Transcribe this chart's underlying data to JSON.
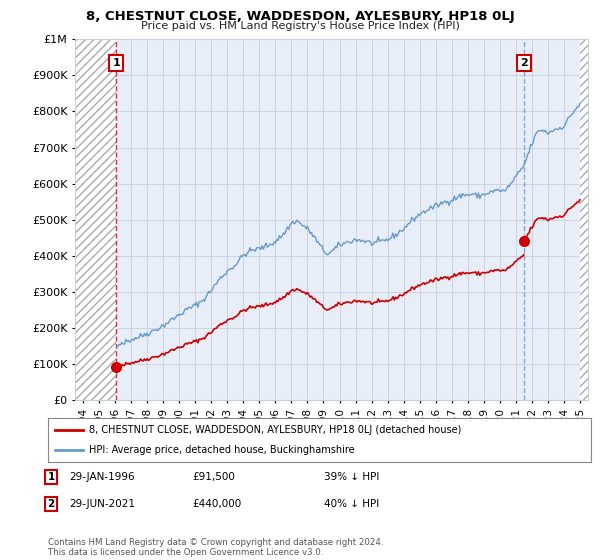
{
  "title": "8, CHESTNUT CLOSE, WADDESDON, AYLESBURY, HP18 0LJ",
  "subtitle": "Price paid vs. HM Land Registry's House Price Index (HPI)",
  "legend_line1": "8, CHESTNUT CLOSE, WADDESDON, AYLESBURY, HP18 0LJ (detached house)",
  "legend_line2": "HPI: Average price, detached house, Buckinghamshire",
  "annotation1_date": "29-JAN-1996",
  "annotation1_price": "£91,500",
  "annotation1_hpi": "39% ↓ HPI",
  "annotation2_date": "29-JUN-2021",
  "annotation2_price": "£440,000",
  "annotation2_hpi": "40% ↓ HPI",
  "footnote": "Contains HM Land Registry data © Crown copyright and database right 2024.\nThis data is licensed under the Open Government Licence v3.0.",
  "sale1_year": 1996.08,
  "sale1_value": 91500,
  "sale2_year": 2021.5,
  "sale2_value": 440000,
  "hpi_color": "#6699cc",
  "price_color": "#cc0000",
  "background_color": "#ffffff",
  "plot_bg_color": "#e8eef8",
  "hatch_color": "#aaaaaa",
  "grid_color": "#c8d0dc",
  "ylim": [
    0,
    1000000
  ],
  "xlim_left": 1993.5,
  "xlim_right": 2025.5,
  "xtick_years": [
    1994,
    1995,
    1996,
    1997,
    1998,
    1999,
    2000,
    2001,
    2002,
    2003,
    2004,
    2005,
    2006,
    2007,
    2008,
    2009,
    2010,
    2011,
    2012,
    2013,
    2014,
    2015,
    2016,
    2017,
    2018,
    2019,
    2020,
    2021,
    2022,
    2023,
    2024,
    2025
  ],
  "ytick_values": [
    0,
    100000,
    200000,
    300000,
    400000,
    500000,
    600000,
    700000,
    800000,
    900000,
    1000000
  ]
}
